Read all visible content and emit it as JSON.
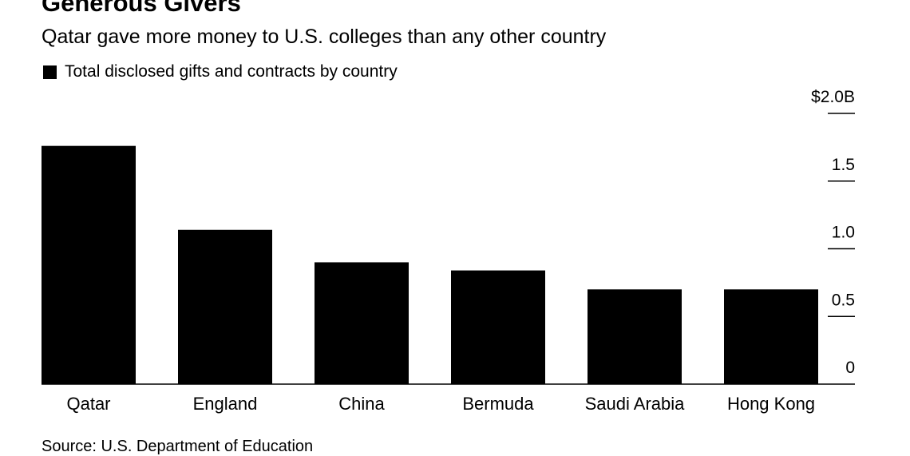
{
  "header": {
    "title": "Generous Givers",
    "subtitle": "Qatar gave more money to U.S. colleges than any other country"
  },
  "legend": {
    "label": "Total disclosed gifts and contracts by country",
    "color": "#000000"
  },
  "source": "Source: U.S. Department of Education",
  "chart_data": {
    "type": "bar",
    "title": "Generous Givers",
    "subtitle": "Qatar gave more money to U.S. colleges than any other country",
    "categories": [
      "Qatar",
      "England",
      "China",
      "Bermuda",
      "Saudi Arabia",
      "Hong Kong"
    ],
    "series": [
      {
        "name": "Total disclosed gifts and contracts by country",
        "values": [
          1.76,
          1.14,
          0.9,
          0.84,
          0.7,
          0.7
        ],
        "color": "#000000"
      }
    ],
    "ylim": [
      0,
      2.0
    ],
    "yticks": [
      0,
      0.5,
      1.0,
      1.5,
      2.0
    ],
    "ytick_labels": [
      "0",
      "0.5",
      "1.0",
      "1.5",
      "$2.0B"
    ],
    "y_axis_position": "right",
    "grid": false,
    "legend_position": "top-left",
    "xlabel": "",
    "ylabel": ""
  }
}
